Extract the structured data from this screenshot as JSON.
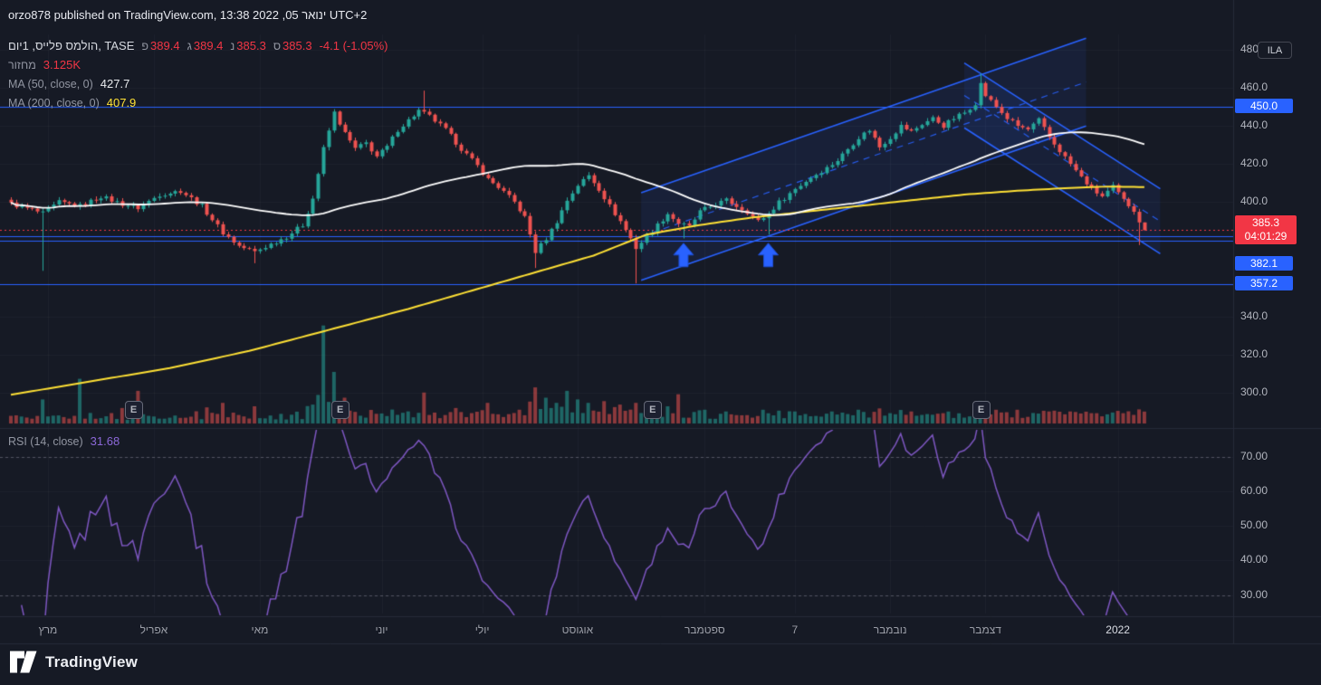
{
  "page": {
    "published_line": "orzo878 published on TradingView.com, 13:38 2022 ,05 ‎ינואר‎ UTC+2"
  },
  "legend": {
    "symbol_title": "הולמס פלייס, 1יום, TASE",
    "ohlc": [
      {
        "k": "פ",
        "v": "389.4"
      },
      {
        "k": "ג",
        "v": "389.4"
      },
      {
        "k": "נ",
        "v": "385.3"
      },
      {
        "k": "ס",
        "v": "385.3"
      }
    ],
    "change": "-4.1 (-1.05%)",
    "volume_label": "מחזור",
    "volume_value": "3.125K",
    "ma50_label": "MA (50, close, 0)",
    "ma50_value": "427.7",
    "ma200_label": "MA (200, close, 0)",
    "ma200_value": "407.9",
    "rsi_label": "RSI (14, close)",
    "rsi_value": "31.68"
  },
  "axis": {
    "currency_badge": "ILA",
    "price_ticks": [
      480,
      460,
      440,
      420,
      400,
      340,
      320,
      300
    ],
    "level_labels": [
      {
        "price": 450.0,
        "label": "450.0"
      },
      {
        "price": 382.1,
        "label": "382.1"
      },
      {
        "price": 357.2,
        "label": "357.2"
      }
    ],
    "last_price": {
      "label": "385.3",
      "countdown": "04:01:29"
    },
    "rsi_ticks": [
      70,
      60,
      50,
      40,
      30
    ]
  },
  "time_axis": [
    {
      "t": "מרץ",
      "d": 7
    },
    {
      "t": "אפריל",
      "d": 27
    },
    {
      "t": "מאי",
      "d": 47
    },
    {
      "t": "יוני",
      "d": 70
    },
    {
      "t": "יולי",
      "d": 89
    },
    {
      "t": "אוגוסט",
      "d": 107
    },
    {
      "t": "ספטמבר",
      "d": 131
    },
    {
      "t": "7",
      "d": 148
    },
    {
      "t": "נובמבר",
      "d": 166
    },
    {
      "t": "דצמבר",
      "d": 184
    },
    {
      "t": "2022",
      "d": 209,
      "major": true
    }
  ],
  "footer": {
    "brand": "TradingView"
  },
  "colors": {
    "bg": "#161a25",
    "up": "#26a69a",
    "down": "#ef5350",
    "ma50": "#ffffff",
    "ma200": "#ffe135",
    "blue": "#2962ff",
    "red": "#f23645",
    "purple": "#7e57c2",
    "axis_text": "#b2b5be",
    "separator": "#262b38"
  },
  "chart_data": {
    "type": "candlestick",
    "symbol": "הולמס פלייס",
    "exchange": "TASE",
    "interval": "1יום",
    "current": {
      "open": 389.4,
      "high": 389.4,
      "low": 385.3,
      "close": 385.3,
      "change": -4.1,
      "change_pct": -1.05,
      "volume": "3.125K",
      "ma50": 427.7,
      "ma200": 407.9,
      "rsi14": 31.68
    },
    "ylim_main": [
      283,
      488
    ],
    "ylim_rsi": [
      24.7,
      77
    ],
    "days": 215,
    "noise_amp": 2.4,
    "close_anchors": [
      [
        0,
        399
      ],
      [
        4,
        396
      ],
      [
        6,
        394
      ],
      [
        9,
        400
      ],
      [
        13,
        398
      ],
      [
        17,
        403
      ],
      [
        21,
        399
      ],
      [
        24,
        397
      ],
      [
        28,
        404
      ],
      [
        32,
        406
      ],
      [
        36,
        398
      ],
      [
        40,
        384
      ],
      [
        43,
        377
      ],
      [
        46,
        374
      ],
      [
        49,
        378
      ],
      [
        52,
        382
      ],
      [
        55,
        388
      ],
      [
        57,
        402
      ],
      [
        59,
        428
      ],
      [
        61,
        447
      ],
      [
        63,
        436
      ],
      [
        65,
        428
      ],
      [
        67,
        431
      ],
      [
        69,
        424
      ],
      [
        71,
        429
      ],
      [
        73,
        438
      ],
      [
        75,
        443
      ],
      [
        77,
        448
      ],
      [
        79,
        445
      ],
      [
        82,
        438
      ],
      [
        85,
        428
      ],
      [
        88,
        419
      ],
      [
        90,
        412
      ],
      [
        92,
        408
      ],
      [
        95,
        400
      ],
      [
        97,
        392
      ],
      [
        99,
        374
      ],
      [
        101,
        381
      ],
      [
        103,
        390
      ],
      [
        105,
        401
      ],
      [
        107,
        409
      ],
      [
        109,
        414
      ],
      [
        111,
        407
      ],
      [
        113,
        398
      ],
      [
        115,
        390
      ],
      [
        117,
        381
      ],
      [
        118,
        376
      ],
      [
        120,
        382
      ],
      [
        122,
        388
      ],
      [
        124,
        394
      ],
      [
        126,
        389
      ],
      [
        128,
        387
      ],
      [
        130,
        395
      ],
      [
        133,
        399
      ],
      [
        135,
        401
      ],
      [
        137,
        398
      ],
      [
        139,
        395
      ],
      [
        141,
        390
      ],
      [
        143,
        394
      ],
      [
        145,
        400
      ],
      [
        148,
        407
      ],
      [
        151,
        413
      ],
      [
        154,
        418
      ],
      [
        156,
        422
      ],
      [
        158,
        428
      ],
      [
        160,
        434
      ],
      [
        162,
        438
      ],
      [
        164,
        429
      ],
      [
        166,
        434
      ],
      [
        168,
        440
      ],
      [
        170,
        437
      ],
      [
        172,
        441
      ],
      [
        174,
        444
      ],
      [
        176,
        440
      ],
      [
        178,
        444
      ],
      [
        180,
        447
      ],
      [
        182,
        452
      ],
      [
        183,
        462
      ],
      [
        184,
        456
      ],
      [
        186,
        450
      ],
      [
        188,
        444
      ],
      [
        190,
        440
      ],
      [
        192,
        438
      ],
      [
        194,
        443
      ],
      [
        196,
        434
      ],
      [
        198,
        427
      ],
      [
        200,
        420
      ],
      [
        202,
        413
      ],
      [
        204,
        407
      ],
      [
        206,
        403
      ],
      [
        208,
        408
      ],
      [
        210,
        401
      ],
      [
        212,
        396
      ],
      [
        213,
        389.4
      ],
      [
        214,
        385.3
      ]
    ],
    "wick_overrides": {
      "6": {
        "low": 364
      },
      "46": {
        "low": 368
      },
      "78": {
        "high": 458.5
      },
      "99": {
        "low": 365.5
      },
      "118": {
        "low": 357.4
      },
      "127": {
        "low": 381
      },
      "143": {
        "low": 383
      },
      "183": {
        "high": 467.5
      },
      "213": {
        "low": 377.5
      },
      "214": {
        "high": 389.4,
        "low": 385.3
      }
    },
    "volume_overrides": {
      "6": 14,
      "13": 26,
      "21": 9,
      "24": 19,
      "40": 12,
      "46": 10,
      "59": 57,
      "61": 30,
      "63": 15,
      "78": 18,
      "90": 12,
      "99": 21,
      "101": 15,
      "103": 12,
      "105": 19,
      "107": 14,
      "109": 12,
      "112": 13,
      "115": 11,
      "118": 12,
      "121": 13,
      "124": 10,
      "126": 17,
      "131": 8,
      "135": 7,
      "142": 8,
      "148": 7,
      "155": 7,
      "160": 8,
      "166": 6,
      "170": 7,
      "176": 6,
      "183": 13,
      "186": 8,
      "190": 8,
      "196": 7,
      "200": 7,
      "204": 6,
      "210": 6,
      "212": 5
    },
    "ma200_anchors": [
      [
        0,
        299
      ],
      [
        15,
        306
      ],
      [
        30,
        313
      ],
      [
        45,
        322
      ],
      [
        60,
        333
      ],
      [
        75,
        344
      ],
      [
        90,
        356
      ],
      [
        100,
        364
      ],
      [
        110,
        372
      ],
      [
        120,
        383
      ],
      [
        130,
        388
      ],
      [
        140,
        392
      ],
      [
        150,
        395
      ],
      [
        160,
        398
      ],
      [
        170,
        401
      ],
      [
        180,
        404
      ],
      [
        190,
        406
      ],
      [
        200,
        407.5
      ],
      [
        207,
        408.2
      ],
      [
        214,
        407.9
      ]
    ],
    "horizontal_lines": [
      450.0,
      382.1,
      379.6,
      357.2
    ],
    "last_price_line": 385.3,
    "channels": [
      {
        "name": "ascending-channel",
        "lower_start": [
          119,
          359
        ],
        "lower_end": [
          203,
          440
        ],
        "width": 46
      },
      {
        "name": "descending-channel",
        "upper_start": [
          180,
          473
        ],
        "upper_end": [
          217,
          407
        ],
        "width": 34
      }
    ],
    "arrows": [
      {
        "day": 127,
        "price": 378.5
      },
      {
        "day": 143,
        "price": 378.5
      }
    ],
    "earnings_days": [
      23,
      62,
      121,
      183
    ],
    "rsi_band_levels": [
      70,
      30
    ]
  }
}
